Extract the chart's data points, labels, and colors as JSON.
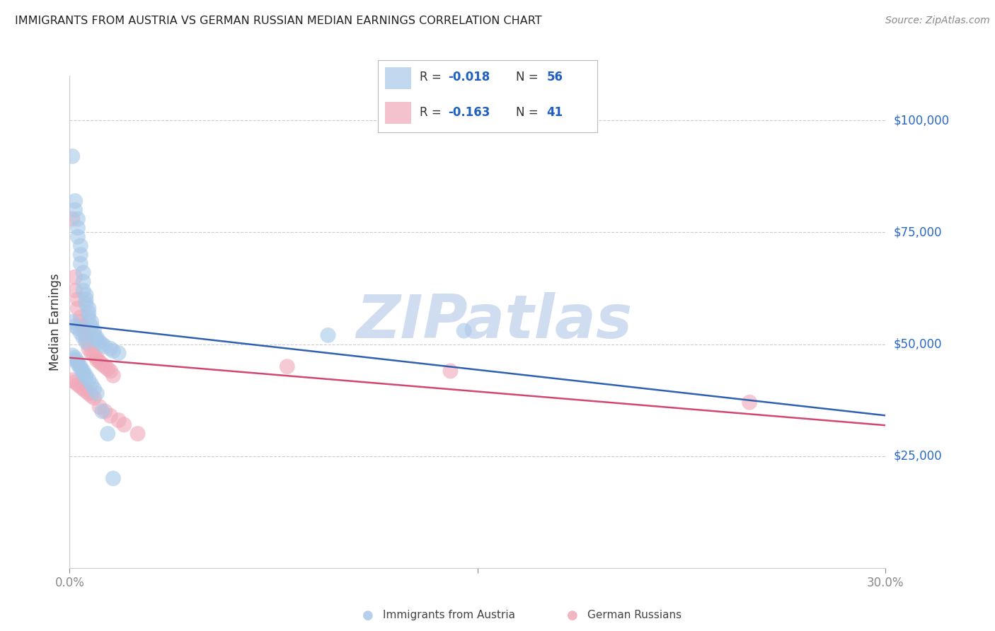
{
  "title": "IMMIGRANTS FROM AUSTRIA VS GERMAN RUSSIAN MEDIAN EARNINGS CORRELATION CHART",
  "source": "Source: ZipAtlas.com",
  "ylabel": "Median Earnings",
  "yticks": [
    0,
    25000,
    50000,
    75000,
    100000
  ],
  "ytick_labels": [
    "",
    "$25,000",
    "$50,000",
    "$75,000",
    "$100,000"
  ],
  "xlim": [
    0.0,
    0.3
  ],
  "ylim": [
    0,
    110000
  ],
  "austria_color": "#a8c8e8",
  "german_russian_color": "#f0a8b8",
  "austria_line_color": "#3060b0",
  "german_russian_line_color": "#d04870",
  "watermark": "ZIPatlas",
  "watermark_color": "#c8d8ee",
  "legend_R_color": "#2060c0",
  "legend_N_color": "#2060c0",
  "legend_value_color": "#2060c0",
  "austria_x": [
    0.001,
    0.002,
    0.002,
    0.003,
    0.003,
    0.003,
    0.004,
    0.004,
    0.004,
    0.005,
    0.005,
    0.005,
    0.006,
    0.006,
    0.006,
    0.007,
    0.007,
    0.007,
    0.008,
    0.008,
    0.009,
    0.009,
    0.01,
    0.01,
    0.011,
    0.012,
    0.013,
    0.015,
    0.016,
    0.018,
    0.001,
    0.002,
    0.002,
    0.003,
    0.003,
    0.004,
    0.004,
    0.005,
    0.005,
    0.006,
    0.006,
    0.007,
    0.008,
    0.009,
    0.01,
    0.012,
    0.014,
    0.016,
    0.095,
    0.145,
    0.001,
    0.002,
    0.003,
    0.004,
    0.005,
    0.006
  ],
  "austria_y": [
    92000,
    82000,
    80000,
    78000,
    76000,
    74000,
    72000,
    70000,
    68000,
    66000,
    64000,
    62000,
    61000,
    60000,
    59000,
    58000,
    57000,
    56000,
    55000,
    54000,
    53000,
    52000,
    51500,
    51000,
    50500,
    50000,
    49500,
    49000,
    48500,
    48000,
    47500,
    47000,
    46500,
    46000,
    45500,
    45000,
    44500,
    44000,
    43500,
    43000,
    42500,
    42000,
    41000,
    40000,
    39000,
    35000,
    30000,
    20000,
    52000,
    53000,
    55000,
    54000,
    53500,
    52500,
    51500,
    50500
  ],
  "german_russian_x": [
    0.001,
    0.002,
    0.002,
    0.003,
    0.003,
    0.004,
    0.004,
    0.005,
    0.005,
    0.006,
    0.006,
    0.007,
    0.007,
    0.008,
    0.009,
    0.01,
    0.01,
    0.011,
    0.012,
    0.013,
    0.014,
    0.015,
    0.016,
    0.001,
    0.002,
    0.003,
    0.004,
    0.005,
    0.006,
    0.007,
    0.008,
    0.009,
    0.011,
    0.013,
    0.015,
    0.018,
    0.02,
    0.025,
    0.08,
    0.14,
    0.25
  ],
  "german_russian_y": [
    78000,
    65000,
    62000,
    60000,
    58000,
    56000,
    55000,
    54000,
    53000,
    52000,
    51000,
    50000,
    49000,
    48000,
    47500,
    47000,
    46500,
    46000,
    45500,
    45000,
    44500,
    44000,
    43000,
    42000,
    41500,
    41000,
    40500,
    40000,
    39500,
    39000,
    38500,
    38000,
    36000,
    35000,
    34000,
    33000,
    32000,
    30000,
    45000,
    44000,
    37000
  ]
}
